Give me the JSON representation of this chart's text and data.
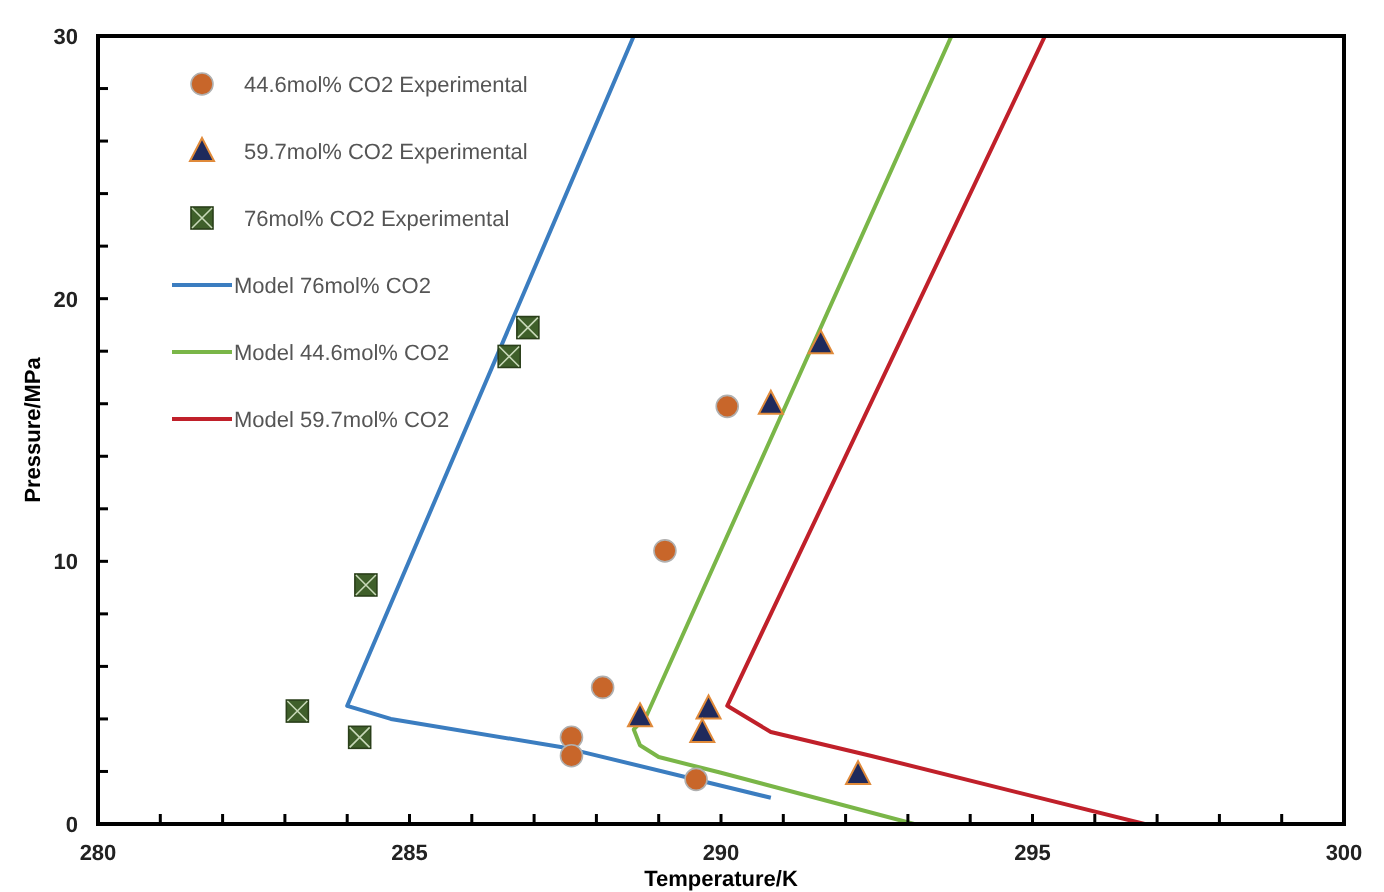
{
  "chart_data": {
    "type": "scatter",
    "xlabel": "Temperature/K",
    "ylabel": "Pressure/MPa",
    "xlim": [
      280,
      300
    ],
    "ylim": [
      0,
      30
    ],
    "xticks": [
      280,
      {
        "value": 281,
        "label": null
      },
      {
        "value": 282,
        "label": null
      },
      {
        "value": 283,
        "label": null
      },
      {
        "value": 284,
        "label": null
      },
      285,
      {
        "value": 286,
        "label": null
      },
      {
        "value": 287,
        "label": null
      },
      {
        "value": 288,
        "label": null
      },
      {
        "value": 289,
        "label": null
      },
      290,
      {
        "value": 291,
        "label": null
      },
      {
        "value": 292,
        "label": null
      },
      {
        "value": 293,
        "label": null
      },
      {
        "value": 294,
        "label": null
      },
      295,
      {
        "value": 296,
        "label": null
      },
      {
        "value": 297,
        "label": null
      },
      {
        "value": 298,
        "label": null
      },
      {
        "value": 299,
        "label": null
      },
      300
    ],
    "yticks": [
      0,
      {
        "value": 2,
        "label": null
      },
      {
        "value": 4,
        "label": null
      },
      {
        "value": 6,
        "label": null
      },
      {
        "value": 8,
        "label": null
      },
      10,
      {
        "value": 12,
        "label": null
      },
      {
        "value": 14,
        "label": null
      },
      {
        "value": 16,
        "label": null
      },
      {
        "value": 18,
        "label": null
      },
      20,
      {
        "value": 22,
        "label": null
      },
      {
        "value": 24,
        "label": null
      },
      {
        "value": 26,
        "label": null
      },
      {
        "value": 28,
        "label": null
      },
      30
    ],
    "grid": false,
    "legend": "top left",
    "series": [
      {
        "name": "44.6mol% CO2 Experimental",
        "marker": "circle",
        "color": "#c8662a",
        "x": [
          289.1,
          288.1,
          287.6,
          287.6,
          289.6,
          290.1
        ],
        "values": [
          10.4,
          5.2,
          3.3,
          2.6,
          1.7,
          15.9
        ]
      },
      {
        "name": "59.7mol% CO2 Experimental",
        "marker": "triangle",
        "color": "#1f2a5c",
        "x": [
          291.6,
          290.8,
          289.8,
          289.7,
          292.2,
          288.7
        ],
        "values": [
          18.3,
          16.0,
          4.4,
          3.5,
          1.9,
          4.1
        ]
      },
      {
        "name": "76mol% CO2 Experimental",
        "marker": "square",
        "color": "#3f5f2a",
        "x": [
          286.9,
          286.6,
          284.3,
          283.2,
          284.2
        ],
        "values": [
          18.9,
          17.8,
          9.1,
          4.3,
          3.3
        ]
      },
      {
        "name": "Model 76mol% CO2",
        "type": "line",
        "color": "#3b7dc0",
        "x": [
          288.6,
          284.0,
          284.7,
          287.5,
          290.8
        ],
        "values": [
          30,
          4.5,
          4.0,
          2.9,
          1.0
        ]
      },
      {
        "name": "Model 44.6mol% CO2",
        "type": "line",
        "color": "#7ab648",
        "x": [
          293.7,
          288.8,
          288.6,
          288.7,
          289.0,
          290.0,
          293.1
        ],
        "values": [
          30,
          4.1,
          3.6,
          3.0,
          2.55,
          1.95,
          0
        ]
      },
      {
        "name": "Model 59.7mol% CO2",
        "type": "line",
        "color": "#c0202a",
        "x": [
          295.2,
          290.1,
          290.8,
          292.4,
          296.8
        ],
        "values": [
          30,
          4.5,
          3.5,
          2.6,
          0
        ]
      }
    ]
  }
}
